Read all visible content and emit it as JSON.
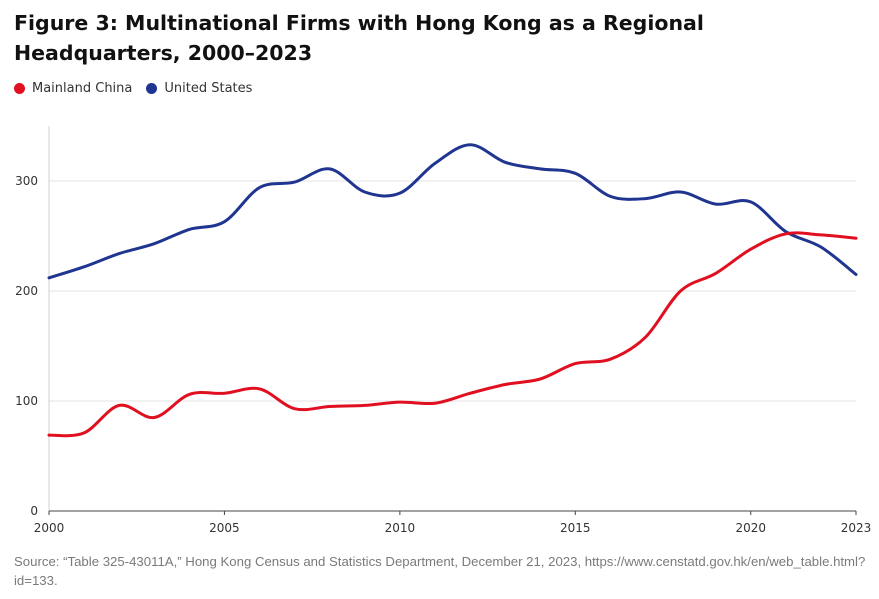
{
  "title": "Figure 3: Multinational Firms with Hong Kong as a Regional Headquarters, 2000–2023",
  "source": "Source: “Table 325-43011A,” Hong Kong Census and Statistics Department, December 21, 2023, https://www.censtatd.gov.hk/en/web_table.html?id=133.",
  "colors": {
    "mainland_china": "#e01020",
    "united_states": "#1f3590",
    "grid": "#e3e3e3",
    "axis": "#d0d0d0"
  },
  "chart_data": {
    "type": "line",
    "title": "Figure 3: Multinational Firms with Hong Kong as a Regional Headquarters, 2000–2023",
    "xlabel": "",
    "ylabel": "",
    "x": [
      2000,
      2001,
      2002,
      2003,
      2004,
      2005,
      2006,
      2007,
      2008,
      2009,
      2010,
      2011,
      2012,
      2013,
      2014,
      2015,
      2016,
      2017,
      2018,
      2019,
      2020,
      2021,
      2022,
      2023
    ],
    "xlim": [
      2000,
      2023
    ],
    "ylim": [
      0,
      350
    ],
    "x_ticks": [
      2000,
      2005,
      2010,
      2015,
      2020,
      2023
    ],
    "y_ticks": [
      0,
      100,
      200,
      300
    ],
    "grid": true,
    "legend_position": "top-left",
    "series": [
      {
        "name": "Mainland China",
        "color": "#e01020",
        "values": [
          69,
          71,
          96,
          85,
          106,
          107,
          111,
          93,
          95,
          96,
          99,
          98,
          107,
          115,
          120,
          134,
          138,
          158,
          200,
          216,
          238,
          252,
          251,
          248
        ]
      },
      {
        "name": "United States",
        "color": "#1f3590",
        "values": [
          212,
          222,
          234,
          243,
          256,
          263,
          294,
          299,
          311,
          290,
          289,
          316,
          333,
          317,
          311,
          307,
          286,
          284,
          290,
          279,
          281,
          254,
          240,
          215
        ]
      }
    ]
  }
}
